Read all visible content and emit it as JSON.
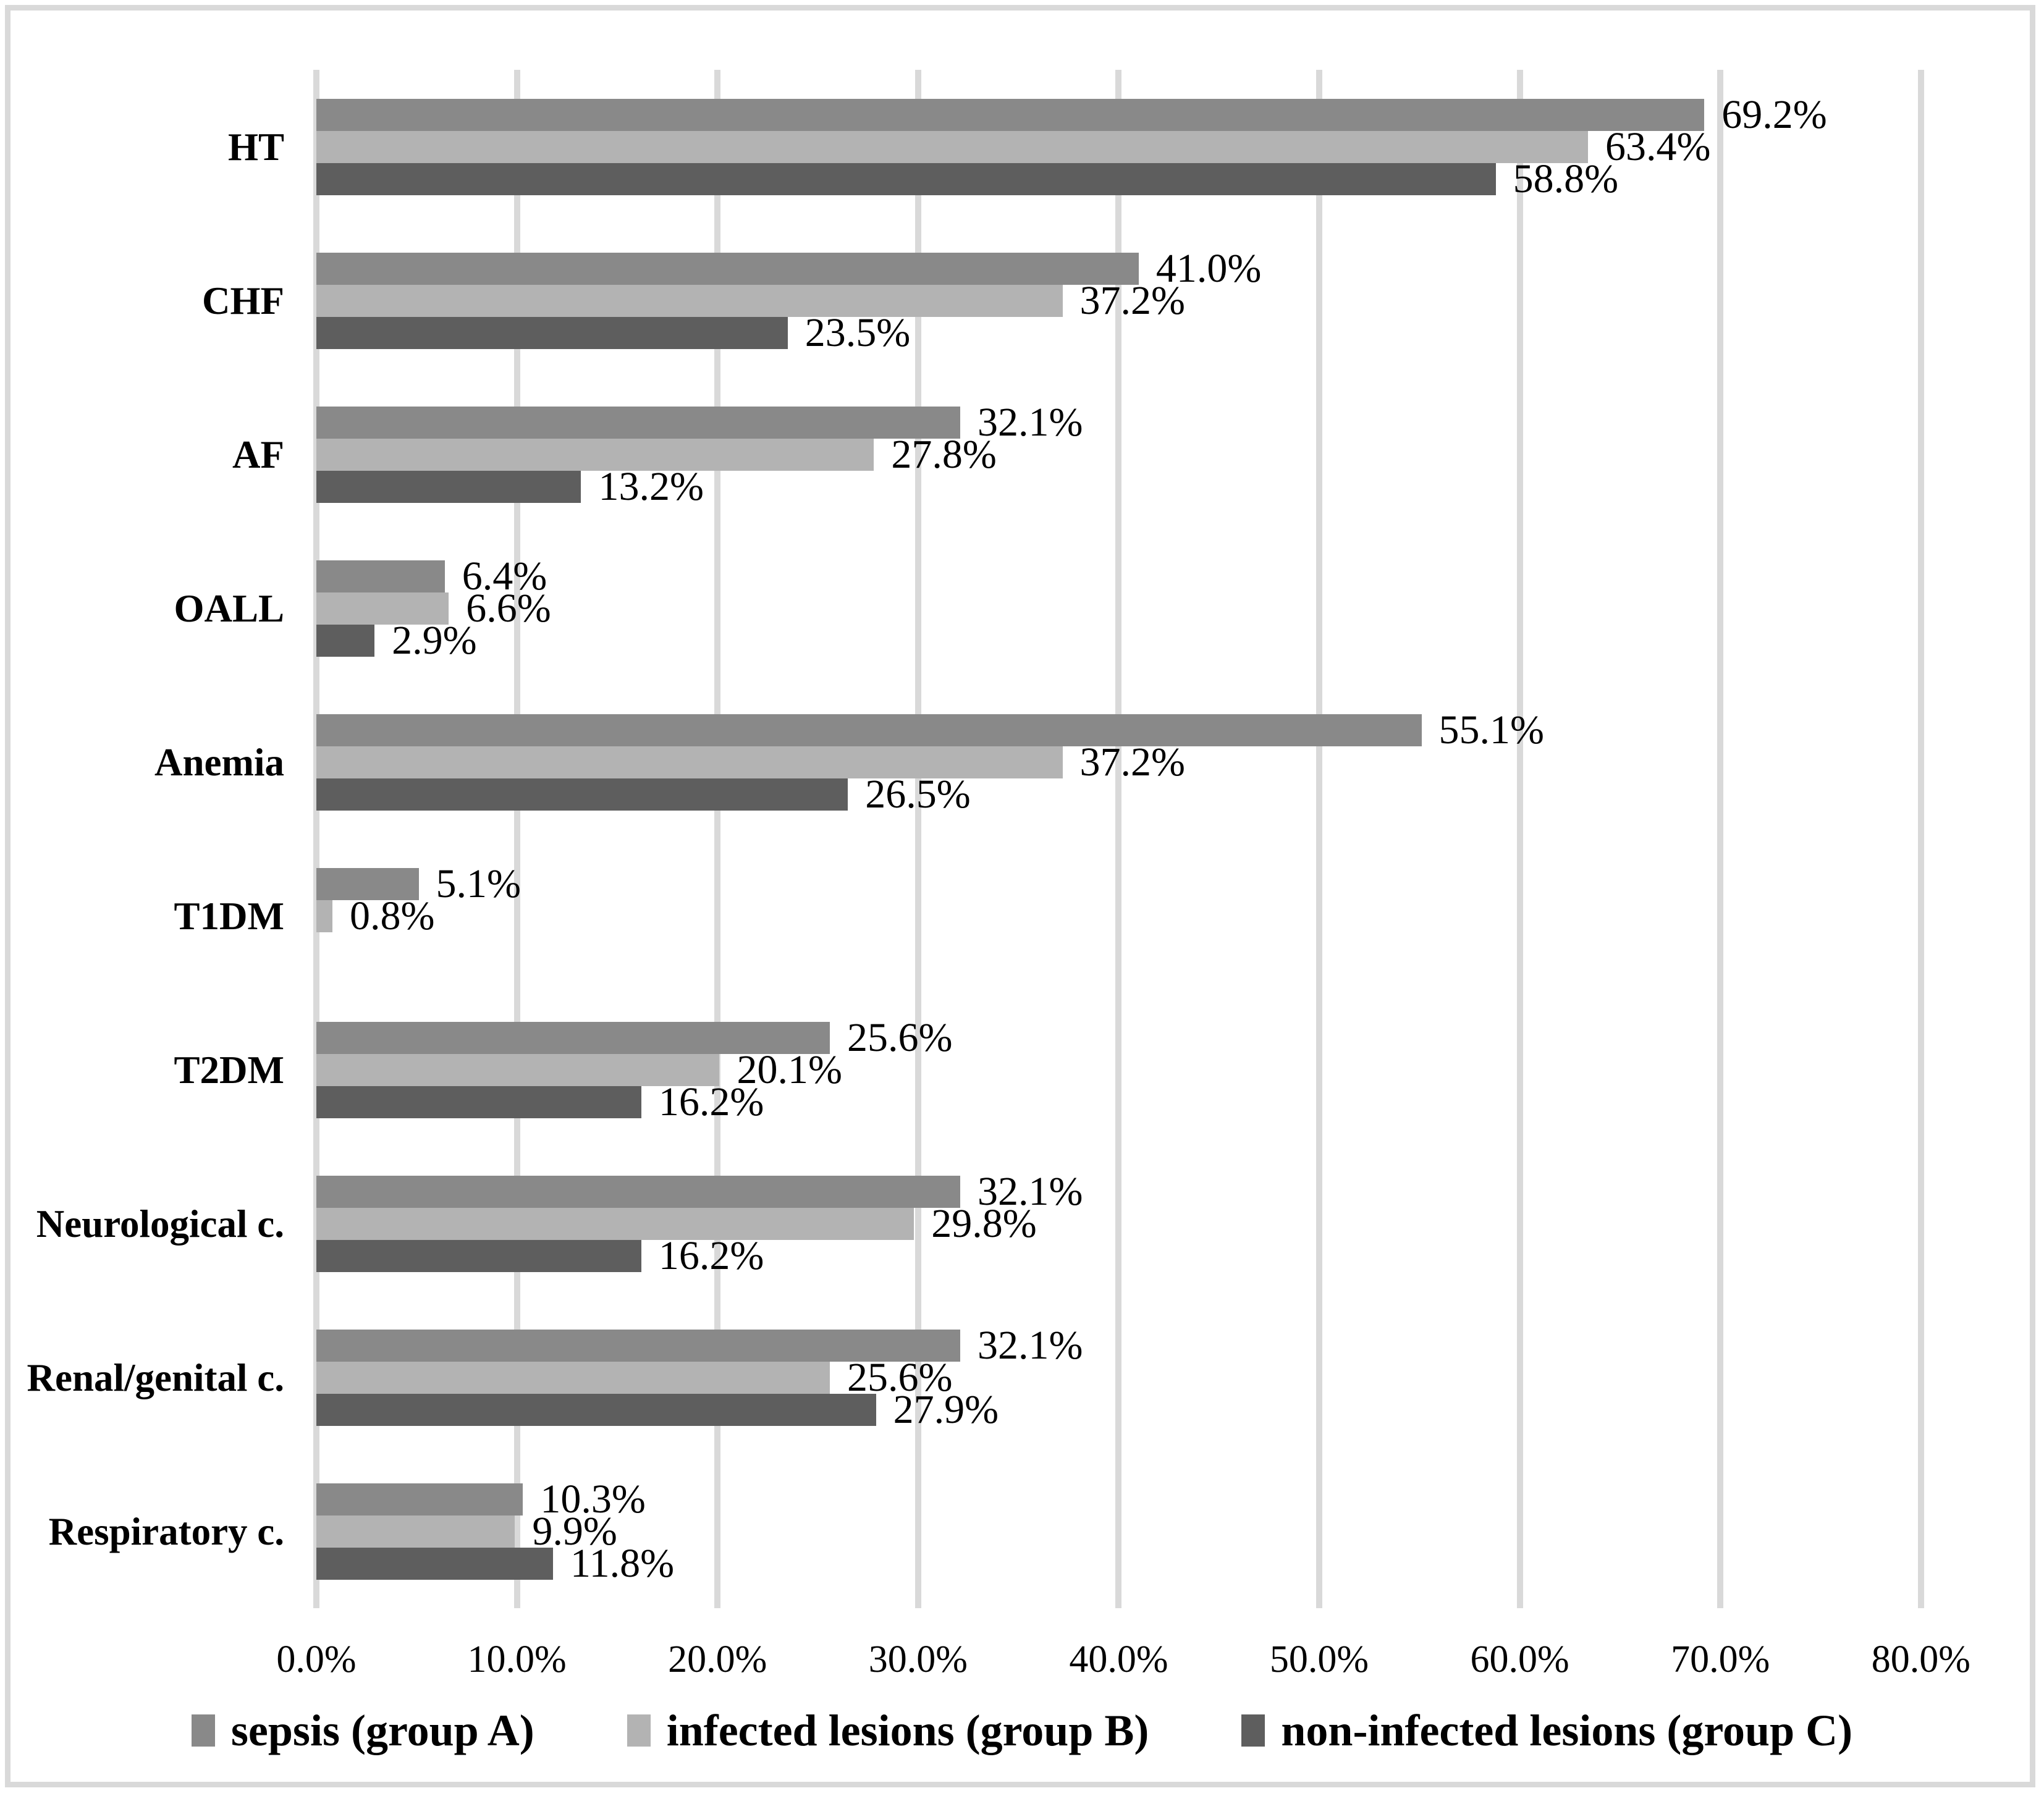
{
  "figure": {
    "background_color": "#FFFFFF",
    "frame_color": "#D9D9D9"
  },
  "chart_data": {
    "type": "bar",
    "orientation": "horizontal",
    "title": "",
    "categories": [
      "HT",
      "CHF",
      "AF",
      "OALL",
      "Anemia",
      "T1DM",
      "T2DM",
      "Neurological c.",
      "Renal/genital c.",
      "Respiratory c."
    ],
    "series": [
      {
        "name": "sepsis (group A)",
        "color": "#898989",
        "values": [
          69.2,
          41.0,
          32.1,
          6.4,
          55.1,
          5.1,
          25.6,
          32.1,
          32.1,
          10.3
        ]
      },
      {
        "name": "infected lesions (group B)",
        "color": "#B3B3B3",
        "values": [
          63.4,
          37.2,
          27.8,
          6.6,
          37.2,
          0.8,
          20.1,
          29.8,
          25.6,
          9.9
        ]
      },
      {
        "name": "non-infected lesions (group C)",
        "color": "#5E5E5E",
        "values": [
          58.8,
          23.5,
          13.2,
          2.9,
          26.5,
          null,
          16.2,
          16.2,
          27.9,
          11.8
        ]
      }
    ],
    "data_labels": true,
    "data_label_format": "{value}%",
    "x_axis": {
      "min": 0,
      "max": 80,
      "tick_step": 10,
      "tick_labels": [
        "0.0%",
        "10.0%",
        "20.0%",
        "30.0%",
        "40.0%",
        "50.0%",
        "60.0%",
        "70.0%",
        "80.0%"
      ],
      "gridlines": true,
      "gridline_color": "#D9D9D9"
    },
    "legend_position": "bottom"
  }
}
